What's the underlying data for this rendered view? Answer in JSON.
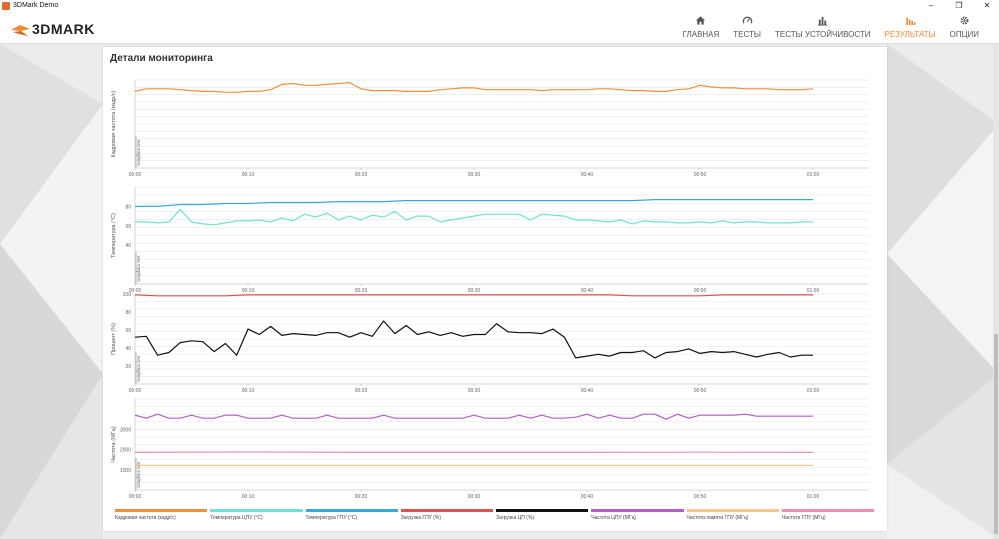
{
  "window": {
    "title": "3DMark Demo",
    "minimize": "–",
    "maximize": "❐",
    "close": "✕"
  },
  "app": {
    "brand": "3DMARK"
  },
  "nav": [
    {
      "label": "ГЛАВНАЯ",
      "icon": "home-icon",
      "active": false
    },
    {
      "label": "ТЕСТЫ",
      "icon": "gauge-icon",
      "active": false
    },
    {
      "label": "ТЕСТЫ УСТОЙЧИВОСТИ",
      "icon": "bar-chart-icon",
      "active": false
    },
    {
      "label": "РЕЗУЛЬТАТЫ",
      "icon": "results-icon",
      "active": true
    },
    {
      "label": "ОПЦИИ",
      "icon": "gear-icon",
      "active": false
    }
  ],
  "colors": {
    "accent": "#f08c2b",
    "fps": "#f0903a",
    "cpu_temp": "#6ee3cf",
    "gpu_temp": "#3ba8dc",
    "gpu_load": "#d9534f",
    "cpu_load": "#111111",
    "cpu_freq": "#b45fc9",
    "gpu_mem_freq": "#f2c98a",
    "gpu_freq": "#ef8fb5"
  },
  "panel": {
    "title": "Детали мониторинга"
  },
  "chart_data": [
    {
      "type": "line",
      "ylabel": "Кадровая частота (кадр/с)",
      "annotation": "Graphics test",
      "x_ticks": [
        "00:00",
        "00:10",
        "00:20",
        "00:30",
        "00:40",
        "00:50",
        "01:00"
      ],
      "xlim": [
        0,
        60
      ],
      "ylim": [
        0,
        100
      ],
      "y_ticks": [],
      "series": [
        {
          "name": "Кадровая частота (кадр/с)",
          "color": "#f0903a",
          "x": [
            0,
            1,
            2,
            3,
            4,
            5,
            6,
            7,
            8,
            9,
            10,
            11,
            12,
            13,
            14,
            15,
            16,
            17,
            18,
            19,
            20,
            21,
            22,
            23,
            24,
            25,
            26,
            27,
            28,
            29,
            30,
            31,
            32,
            33,
            34,
            35,
            36,
            37,
            38,
            39,
            40,
            41,
            42,
            43,
            44,
            45,
            46,
            47,
            48,
            49,
            50,
            51,
            52,
            53,
            54,
            55,
            56,
            57,
            58,
            59,
            60
          ],
          "values": [
            87,
            90,
            90,
            90,
            89,
            88,
            87,
            87,
            86,
            86,
            87,
            87,
            89,
            95,
            96,
            94,
            94,
            95,
            96,
            97,
            90,
            88,
            88,
            88,
            87,
            87,
            87,
            89,
            90,
            91,
            91,
            89,
            89,
            89,
            89,
            89,
            88,
            89,
            89,
            89,
            89,
            90,
            90,
            89,
            88,
            88,
            87,
            87,
            89,
            90,
            94,
            92,
            91,
            91,
            90,
            90,
            90,
            89,
            89,
            89,
            90
          ]
        }
      ]
    },
    {
      "type": "line",
      "ylabel": "Температура (°C)",
      "annotation": "Graphics test",
      "x_ticks": [
        "00:00",
        "00:10",
        "00:20",
        "00:30",
        "00:40",
        "00:50",
        "01:00"
      ],
      "xlim": [
        0,
        60
      ],
      "ylim": [
        0,
        100
      ],
      "y_ticks": [
        "40",
        "60",
        "80"
      ],
      "series": [
        {
          "name": "Температура ГПУ (°C)",
          "color": "#3ba8dc",
          "x": [
            0,
            2,
            4,
            6,
            8,
            10,
            12,
            14,
            16,
            18,
            20,
            22,
            24,
            26,
            28,
            30,
            32,
            34,
            36,
            38,
            40,
            42,
            44,
            46,
            48,
            50,
            52,
            54,
            56,
            58,
            60
          ],
          "values": [
            80,
            80,
            82,
            82,
            83,
            83,
            84,
            84,
            84,
            85,
            85,
            85,
            86,
            86,
            86,
            86,
            86,
            86,
            86,
            86,
            86,
            86,
            86,
            87,
            87,
            87,
            87,
            87,
            87,
            87,
            87
          ]
        },
        {
          "name": "Температура ЦПУ (°C)",
          "color": "#6ee3cf",
          "x": [
            0,
            1,
            2,
            3,
            4,
            5,
            6,
            7,
            8,
            9,
            10,
            11,
            12,
            13,
            14,
            15,
            16,
            17,
            18,
            19,
            20,
            21,
            22,
            23,
            24,
            25,
            26,
            27,
            28,
            29,
            30,
            31,
            32,
            33,
            34,
            35,
            36,
            37,
            38,
            39,
            40,
            41,
            42,
            43,
            44,
            45,
            46,
            47,
            48,
            49,
            50,
            51,
            52,
            53,
            54,
            55,
            56,
            57,
            58,
            59,
            60
          ],
          "values": [
            64,
            64,
            63,
            64,
            77,
            64,
            62,
            61,
            63,
            65,
            65,
            66,
            64,
            68,
            65,
            72,
            69,
            73,
            66,
            70,
            66,
            71,
            69,
            75,
            66,
            70,
            70,
            64,
            66,
            68,
            70,
            72,
            72,
            72,
            72,
            66,
            72,
            71,
            70,
            66,
            66,
            65,
            64,
            66,
            62,
            65,
            64,
            64,
            63,
            63,
            64,
            63,
            65,
            63,
            64,
            64,
            63,
            63,
            63,
            64,
            64
          ]
        }
      ]
    },
    {
      "type": "line",
      "ylabel": "Процент (%)",
      "annotation": "Graphics test",
      "x_ticks": [
        "00:00",
        "00:10",
        "00:20",
        "00:30",
        "00:40",
        "00:50",
        "01:00"
      ],
      "xlim": [
        0,
        60
      ],
      "ylim": [
        0,
        100
      ],
      "y_ticks": [
        "20",
        "40",
        "60",
        "80",
        "100"
      ],
      "series": [
        {
          "name": "Загрузка ГПУ (%)",
          "color": "#d9534f",
          "x": [
            0,
            2,
            4,
            6,
            8,
            10,
            12,
            14,
            16,
            18,
            20,
            22,
            24,
            26,
            28,
            30,
            32,
            34,
            36,
            38,
            40,
            42,
            44,
            46,
            48,
            50,
            52,
            54,
            56,
            58,
            60
          ],
          "values": [
            99,
            98,
            98,
            98,
            98,
            99,
            99,
            99,
            99,
            99,
            99,
            99,
            99,
            99,
            99,
            99,
            99,
            99,
            99,
            99,
            99,
            99,
            98,
            98,
            98,
            98,
            99,
            99,
            99,
            99,
            99
          ]
        },
        {
          "name": "Загрузка ЦП (%)",
          "color": "#111111",
          "x": [
            0,
            1,
            2,
            3,
            4,
            5,
            6,
            7,
            8,
            9,
            10,
            11,
            12,
            13,
            14,
            15,
            16,
            17,
            18,
            19,
            20,
            21,
            22,
            23,
            24,
            25,
            26,
            27,
            28,
            29,
            30,
            31,
            32,
            33,
            34,
            35,
            36,
            37,
            38,
            39,
            40,
            41,
            42,
            43,
            44,
            45,
            46,
            47,
            48,
            49,
            50,
            51,
            52,
            53,
            54,
            55,
            56,
            57,
            58,
            59,
            60
          ],
          "values": [
            52,
            53,
            32,
            35,
            46,
            48,
            47,
            36,
            45,
            32,
            61,
            55,
            64,
            54,
            56,
            55,
            54,
            57,
            57,
            52,
            57,
            53,
            70,
            56,
            65,
            55,
            58,
            54,
            57,
            53,
            55,
            55,
            67,
            58,
            57,
            57,
            56,
            61,
            52,
            29,
            31,
            33,
            31,
            35,
            35,
            37,
            29,
            35,
            36,
            39,
            34,
            36,
            35,
            36,
            33,
            30,
            33,
            35,
            30,
            32,
            32
          ]
        }
      ]
    },
    {
      "type": "line",
      "ylabel": "Частота (МГц)",
      "annotation": "Graphics test",
      "x_ticks": [
        "00:00",
        "00:10",
        "00:20",
        "00:30",
        "00:40",
        "00:50",
        "01:00"
      ],
      "xlim": [
        0,
        60
      ],
      "ylim": [
        0,
        4500
      ],
      "y_ticks": [
        "1000",
        "2000",
        "3000"
      ],
      "series": [
        {
          "name": "Частота ЦПУ (МГц)",
          "color": "#b45fc9",
          "x": [
            0,
            1,
            2,
            3,
            4,
            5,
            6,
            7,
            8,
            9,
            10,
            11,
            12,
            13,
            14,
            15,
            16,
            17,
            18,
            19,
            20,
            21,
            22,
            23,
            24,
            25,
            26,
            27,
            28,
            29,
            30,
            31,
            32,
            33,
            34,
            35,
            36,
            37,
            38,
            39,
            40,
            41,
            42,
            43,
            44,
            45,
            46,
            47,
            48,
            49,
            50,
            51,
            52,
            53,
            54,
            55,
            56,
            57,
            58,
            59,
            60
          ],
          "values": [
            3700,
            3550,
            3750,
            3550,
            3550,
            3700,
            3550,
            3550,
            3700,
            3700,
            3550,
            3550,
            3550,
            3700,
            3550,
            3550,
            3550,
            3700,
            3550,
            3550,
            3550,
            3550,
            3700,
            3550,
            3550,
            3550,
            3550,
            3550,
            3550,
            3550,
            3700,
            3550,
            3550,
            3550,
            3700,
            3550,
            3700,
            3550,
            3550,
            3600,
            3750,
            3550,
            3700,
            3550,
            3550,
            3750,
            3750,
            3500,
            3750,
            3550,
            3700,
            3700,
            3700,
            3700,
            3750,
            3650,
            3650,
            3650,
            3650,
            3650,
            3650
          ]
        },
        {
          "name": "Частота ГПУ (МГц)",
          "color": "#ef8fb5",
          "x": [
            0,
            10,
            20,
            30,
            40,
            50,
            60
          ],
          "values": [
            1860,
            1880,
            1860,
            1860,
            1860,
            1870,
            1860
          ]
        },
        {
          "name": "Частота памяти ГПУ (МГц)",
          "color": "#f2c98a",
          "x": [
            0,
            60
          ],
          "values": [
            1215,
            1215
          ]
        }
      ]
    }
  ],
  "legend": [
    {
      "label": "Кадровая частота (кадр/с)",
      "color": "#f0903a"
    },
    {
      "label": "Температура ЦПУ (°C)",
      "color": "#6ee3cf"
    },
    {
      "label": "Температура ГПУ (°C)",
      "color": "#3ba8dc"
    },
    {
      "label": "Загрузка ГПУ (%)",
      "color": "#d9534f"
    },
    {
      "label": "Загрузка ЦП (%)",
      "color": "#111111"
    },
    {
      "label": "Частота ЦПУ (МГц)",
      "color": "#b45fc9"
    },
    {
      "label": "Частота памяти ГПУ (МГц)",
      "color": "#f2c98a"
    },
    {
      "label": "Частота ГПУ (МГц)",
      "color": "#ef8fb5"
    }
  ]
}
